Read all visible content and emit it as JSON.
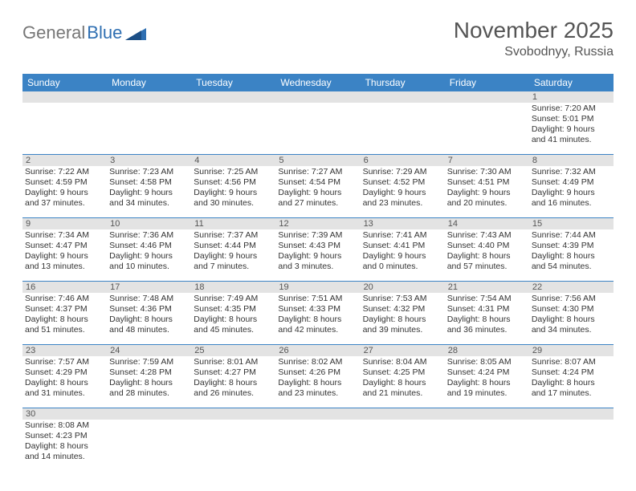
{
  "logo": {
    "text1": "General",
    "text2": "Blue"
  },
  "header": {
    "month": "November 2025",
    "location": "Svobodnyy, Russia"
  },
  "colors": {
    "headerBar": "#3b83c5",
    "dayNumBg": "#e3e3e3",
    "rule": "#3b83c5",
    "textGray": "#555555",
    "bodyText": "#333333"
  },
  "daysOfWeek": [
    "Sunday",
    "Monday",
    "Tuesday",
    "Wednesday",
    "Thursday",
    "Friday",
    "Saturday"
  ],
  "weeks": [
    [
      {
        "n": "",
        "l1": "",
        "l2": "",
        "l3": "",
        "l4": ""
      },
      {
        "n": "",
        "l1": "",
        "l2": "",
        "l3": "",
        "l4": ""
      },
      {
        "n": "",
        "l1": "",
        "l2": "",
        "l3": "",
        "l4": ""
      },
      {
        "n": "",
        "l1": "",
        "l2": "",
        "l3": "",
        "l4": ""
      },
      {
        "n": "",
        "l1": "",
        "l2": "",
        "l3": "",
        "l4": ""
      },
      {
        "n": "",
        "l1": "",
        "l2": "",
        "l3": "",
        "l4": ""
      },
      {
        "n": "1",
        "l1": "Sunrise: 7:20 AM",
        "l2": "Sunset: 5:01 PM",
        "l3": "Daylight: 9 hours",
        "l4": "and 41 minutes."
      }
    ],
    [
      {
        "n": "2",
        "l1": "Sunrise: 7:22 AM",
        "l2": "Sunset: 4:59 PM",
        "l3": "Daylight: 9 hours",
        "l4": "and 37 minutes."
      },
      {
        "n": "3",
        "l1": "Sunrise: 7:23 AM",
        "l2": "Sunset: 4:58 PM",
        "l3": "Daylight: 9 hours",
        "l4": "and 34 minutes."
      },
      {
        "n": "4",
        "l1": "Sunrise: 7:25 AM",
        "l2": "Sunset: 4:56 PM",
        "l3": "Daylight: 9 hours",
        "l4": "and 30 minutes."
      },
      {
        "n": "5",
        "l1": "Sunrise: 7:27 AM",
        "l2": "Sunset: 4:54 PM",
        "l3": "Daylight: 9 hours",
        "l4": "and 27 minutes."
      },
      {
        "n": "6",
        "l1": "Sunrise: 7:29 AM",
        "l2": "Sunset: 4:52 PM",
        "l3": "Daylight: 9 hours",
        "l4": "and 23 minutes."
      },
      {
        "n": "7",
        "l1": "Sunrise: 7:30 AM",
        "l2": "Sunset: 4:51 PM",
        "l3": "Daylight: 9 hours",
        "l4": "and 20 minutes."
      },
      {
        "n": "8",
        "l1": "Sunrise: 7:32 AM",
        "l2": "Sunset: 4:49 PM",
        "l3": "Daylight: 9 hours",
        "l4": "and 16 minutes."
      }
    ],
    [
      {
        "n": "9",
        "l1": "Sunrise: 7:34 AM",
        "l2": "Sunset: 4:47 PM",
        "l3": "Daylight: 9 hours",
        "l4": "and 13 minutes."
      },
      {
        "n": "10",
        "l1": "Sunrise: 7:36 AM",
        "l2": "Sunset: 4:46 PM",
        "l3": "Daylight: 9 hours",
        "l4": "and 10 minutes."
      },
      {
        "n": "11",
        "l1": "Sunrise: 7:37 AM",
        "l2": "Sunset: 4:44 PM",
        "l3": "Daylight: 9 hours",
        "l4": "and 7 minutes."
      },
      {
        "n": "12",
        "l1": "Sunrise: 7:39 AM",
        "l2": "Sunset: 4:43 PM",
        "l3": "Daylight: 9 hours",
        "l4": "and 3 minutes."
      },
      {
        "n": "13",
        "l1": "Sunrise: 7:41 AM",
        "l2": "Sunset: 4:41 PM",
        "l3": "Daylight: 9 hours",
        "l4": "and 0 minutes."
      },
      {
        "n": "14",
        "l1": "Sunrise: 7:43 AM",
        "l2": "Sunset: 4:40 PM",
        "l3": "Daylight: 8 hours",
        "l4": "and 57 minutes."
      },
      {
        "n": "15",
        "l1": "Sunrise: 7:44 AM",
        "l2": "Sunset: 4:39 PM",
        "l3": "Daylight: 8 hours",
        "l4": "and 54 minutes."
      }
    ],
    [
      {
        "n": "16",
        "l1": "Sunrise: 7:46 AM",
        "l2": "Sunset: 4:37 PM",
        "l3": "Daylight: 8 hours",
        "l4": "and 51 minutes."
      },
      {
        "n": "17",
        "l1": "Sunrise: 7:48 AM",
        "l2": "Sunset: 4:36 PM",
        "l3": "Daylight: 8 hours",
        "l4": "and 48 minutes."
      },
      {
        "n": "18",
        "l1": "Sunrise: 7:49 AM",
        "l2": "Sunset: 4:35 PM",
        "l3": "Daylight: 8 hours",
        "l4": "and 45 minutes."
      },
      {
        "n": "19",
        "l1": "Sunrise: 7:51 AM",
        "l2": "Sunset: 4:33 PM",
        "l3": "Daylight: 8 hours",
        "l4": "and 42 minutes."
      },
      {
        "n": "20",
        "l1": "Sunrise: 7:53 AM",
        "l2": "Sunset: 4:32 PM",
        "l3": "Daylight: 8 hours",
        "l4": "and 39 minutes."
      },
      {
        "n": "21",
        "l1": "Sunrise: 7:54 AM",
        "l2": "Sunset: 4:31 PM",
        "l3": "Daylight: 8 hours",
        "l4": "and 36 minutes."
      },
      {
        "n": "22",
        "l1": "Sunrise: 7:56 AM",
        "l2": "Sunset: 4:30 PM",
        "l3": "Daylight: 8 hours",
        "l4": "and 34 minutes."
      }
    ],
    [
      {
        "n": "23",
        "l1": "Sunrise: 7:57 AM",
        "l2": "Sunset: 4:29 PM",
        "l3": "Daylight: 8 hours",
        "l4": "and 31 minutes."
      },
      {
        "n": "24",
        "l1": "Sunrise: 7:59 AM",
        "l2": "Sunset: 4:28 PM",
        "l3": "Daylight: 8 hours",
        "l4": "and 28 minutes."
      },
      {
        "n": "25",
        "l1": "Sunrise: 8:01 AM",
        "l2": "Sunset: 4:27 PM",
        "l3": "Daylight: 8 hours",
        "l4": "and 26 minutes."
      },
      {
        "n": "26",
        "l1": "Sunrise: 8:02 AM",
        "l2": "Sunset: 4:26 PM",
        "l3": "Daylight: 8 hours",
        "l4": "and 23 minutes."
      },
      {
        "n": "27",
        "l1": "Sunrise: 8:04 AM",
        "l2": "Sunset: 4:25 PM",
        "l3": "Daylight: 8 hours",
        "l4": "and 21 minutes."
      },
      {
        "n": "28",
        "l1": "Sunrise: 8:05 AM",
        "l2": "Sunset: 4:24 PM",
        "l3": "Daylight: 8 hours",
        "l4": "and 19 minutes."
      },
      {
        "n": "29",
        "l1": "Sunrise: 8:07 AM",
        "l2": "Sunset: 4:24 PM",
        "l3": "Daylight: 8 hours",
        "l4": "and 17 minutes."
      }
    ],
    [
      {
        "n": "30",
        "l1": "Sunrise: 8:08 AM",
        "l2": "Sunset: 4:23 PM",
        "l3": "Daylight: 8 hours",
        "l4": "and 14 minutes."
      },
      {
        "n": "",
        "l1": "",
        "l2": "",
        "l3": "",
        "l4": ""
      },
      {
        "n": "",
        "l1": "",
        "l2": "",
        "l3": "",
        "l4": ""
      },
      {
        "n": "",
        "l1": "",
        "l2": "",
        "l3": "",
        "l4": ""
      },
      {
        "n": "",
        "l1": "",
        "l2": "",
        "l3": "",
        "l4": ""
      },
      {
        "n": "",
        "l1": "",
        "l2": "",
        "l3": "",
        "l4": ""
      },
      {
        "n": "",
        "l1": "",
        "l2": "",
        "l3": "",
        "l4": ""
      }
    ]
  ]
}
